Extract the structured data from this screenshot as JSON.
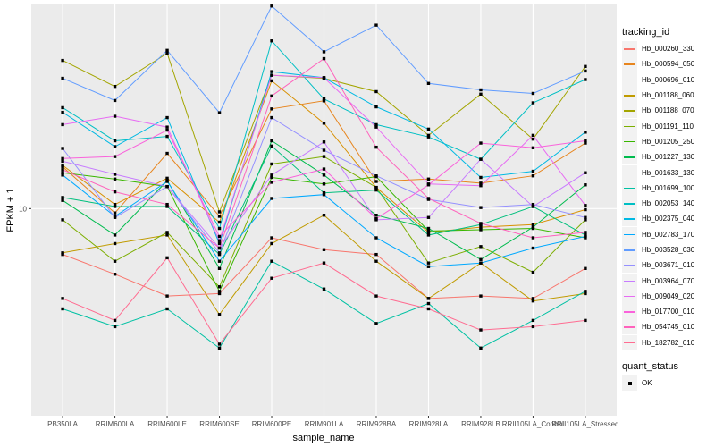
{
  "chart_data": {
    "type": "line",
    "xlabel": "sample_name",
    "ylabel": "FPKM + 1",
    "y_scale": "log10",
    "y_ticks": [
      {
        "value": 10,
        "label": "10"
      }
    ],
    "ylim": [
      1.43,
      68
    ],
    "categories": [
      "PB350LA",
      "RRIM600LA",
      "RRIM600LE",
      "RRIM600SE",
      "RRIM600PE",
      "RRIM901LA",
      "RRIM928BA",
      "RRIM928LA",
      "RRIM928LB",
      "RRII105LA_Control",
      "RRII105LA_Stressed"
    ],
    "grid": true,
    "legend_position": "right",
    "legend_title": "tracking_id",
    "point_legend_title": "quant_status",
    "point_legend_entries": [
      "OK"
    ],
    "series": [
      {
        "name": "Hb_000260_330",
        "color": "#F8766D",
        "values": [
          6.5,
          5.4,
          4.4,
          4.5,
          7.6,
          6.8,
          6.5,
          4.3,
          4.4,
          4.3,
          5.7
        ]
      },
      {
        "name": "Hb_000594_050",
        "color": "#E7851E",
        "values": [
          14.8,
          9.6,
          16.8,
          9.3,
          25.5,
          27.5,
          12.9,
          13.2,
          12.7,
          13.6,
          18.5
        ]
      },
      {
        "name": "Hb_000696_010",
        "color": "#D89000",
        "values": [
          15.0,
          10.4,
          13.3,
          8.8,
          33.2,
          22.3,
          12.2,
          8.0,
          8.4,
          8.6,
          9.9
        ]
      },
      {
        "name": "Hb_001188_060",
        "color": "#C09B00",
        "values": [
          6.6,
          7.2,
          7.8,
          3.7,
          7.2,
          9.4,
          6.1,
          4.3,
          6.0,
          4.2,
          4.5
        ]
      },
      {
        "name": "Hb_001188_070",
        "color": "#A3A500",
        "values": [
          40.2,
          31.5,
          43.0,
          9.7,
          35.0,
          34.0,
          30.0,
          19.9,
          29.3,
          19.2,
          38.0
        ]
      },
      {
        "name": "Hb_001191_110",
        "color": "#7CAE00",
        "values": [
          9.0,
          6.1,
          8.0,
          4.8,
          15.2,
          16.3,
          12.2,
          6.0,
          7.0,
          5.5,
          9.0
        ]
      },
      {
        "name": "Hb_001205_250",
        "color": "#39B600",
        "values": [
          14.0,
          13.2,
          12.3,
          4.6,
          13.4,
          12.6,
          13.5,
          8.1,
          8.2,
          8.3,
          7.6
        ]
      },
      {
        "name": "Hb_001227_130",
        "color": "#00BB4E",
        "values": [
          10.8,
          7.8,
          13.0,
          5.7,
          18.9,
          13.7,
          9.4,
          8.3,
          6.2,
          8.4,
          12.5
        ]
      },
      {
        "name": "Hb_001633_130",
        "color": "#00BF7D",
        "values": [
          11.1,
          10.2,
          10.2,
          6.5,
          18.0,
          11.6,
          11.9,
          7.8,
          8.6,
          10.2,
          7.8
        ]
      },
      {
        "name": "Hb_001699_100",
        "color": "#00C1A3",
        "values": [
          3.9,
          3.3,
          3.9,
          2.7,
          6.1,
          4.7,
          3.4,
          4.1,
          2.7,
          3.5,
          4.6
        ]
      },
      {
        "name": "Hb_002053_140",
        "color": "#00BFC4",
        "values": [
          25.8,
          18.9,
          19.7,
          8.3,
          48.3,
          28.0,
          22.0,
          19.6,
          15.9,
          27.0,
          33.6
        ]
      },
      {
        "name": "Hb_002375_040",
        "color": "#00B9E3",
        "values": [
          24.7,
          17.9,
          23.5,
          7.2,
          36.2,
          34.2,
          26.0,
          21.1,
          13.4,
          14.2,
          20.5
        ]
      },
      {
        "name": "Hb_002783_170",
        "color": "#00A9FF",
        "values": [
          13.7,
          9.3,
          12.9,
          6.1,
          11.0,
          11.4,
          7.6,
          5.8,
          6.0,
          6.9,
          7.7
        ]
      },
      {
        "name": "Hb_003528_030",
        "color": "#619CFF",
        "values": [
          34.0,
          27.6,
          44.2,
          24.6,
          67.0,
          43.6,
          56.0,
          32.4,
          30.5,
          29.5,
          36.4
        ]
      },
      {
        "name": "Hb_003671_010",
        "color": "#9590FF",
        "values": [
          17.6,
          9.2,
          12.3,
          6.6,
          23.5,
          17.3,
          13.6,
          10.9,
          10.1,
          10.4,
          9.2
        ]
      },
      {
        "name": "Hb_003964_070",
        "color": "#C77CFF",
        "values": [
          15.6,
          13.8,
          12.3,
          6.9,
          13.7,
          18.7,
          9.0,
          9.2,
          15.9,
          10.2,
          14.0
        ]
      },
      {
        "name": "Hb_009049_020",
        "color": "#E76BF3",
        "values": [
          22.0,
          23.8,
          21.5,
          7.4,
          35.0,
          34.2,
          21.5,
          12.6,
          12.4,
          19.9,
          10.3
        ]
      },
      {
        "name": "Hb_017700_010",
        "color": "#FA62DB",
        "values": [
          16.0,
          16.3,
          20.9,
          7.7,
          12.8,
          14.5,
          9.1,
          12.5,
          18.5,
          17.7,
          18.9
        ]
      },
      {
        "name": "Hb_054745_010",
        "color": "#FF62BC",
        "values": [
          14.4,
          11.7,
          10.4,
          6.9,
          28.8,
          40.9,
          17.8,
          11.0,
          8.7,
          7.6,
          8.0
        ]
      },
      {
        "name": "Hb_182782_010",
        "color": "#FF6C91",
        "values": [
          4.3,
          3.5,
          6.3,
          2.8,
          5.2,
          6.0,
          4.4,
          3.9,
          3.2,
          3.3,
          3.5
        ]
      }
    ]
  },
  "legend": {
    "title": "tracking_id",
    "entries": [
      "Hb_000260_330",
      "Hb_000594_050",
      "Hb_000696_010",
      "Hb_001188_060",
      "Hb_001188_070",
      "Hb_001191_110",
      "Hb_001205_250",
      "Hb_001227_130",
      "Hb_001633_130",
      "Hb_001699_100",
      "Hb_002053_140",
      "Hb_002375_040",
      "Hb_002783_170",
      "Hb_003528_030",
      "Hb_003671_010",
      "Hb_003964_070",
      "Hb_009049_020",
      "Hb_017700_010",
      "Hb_054745_010",
      "Hb_182782_010"
    ]
  },
  "point_legend": {
    "title": "quant_status",
    "label": "OK"
  }
}
